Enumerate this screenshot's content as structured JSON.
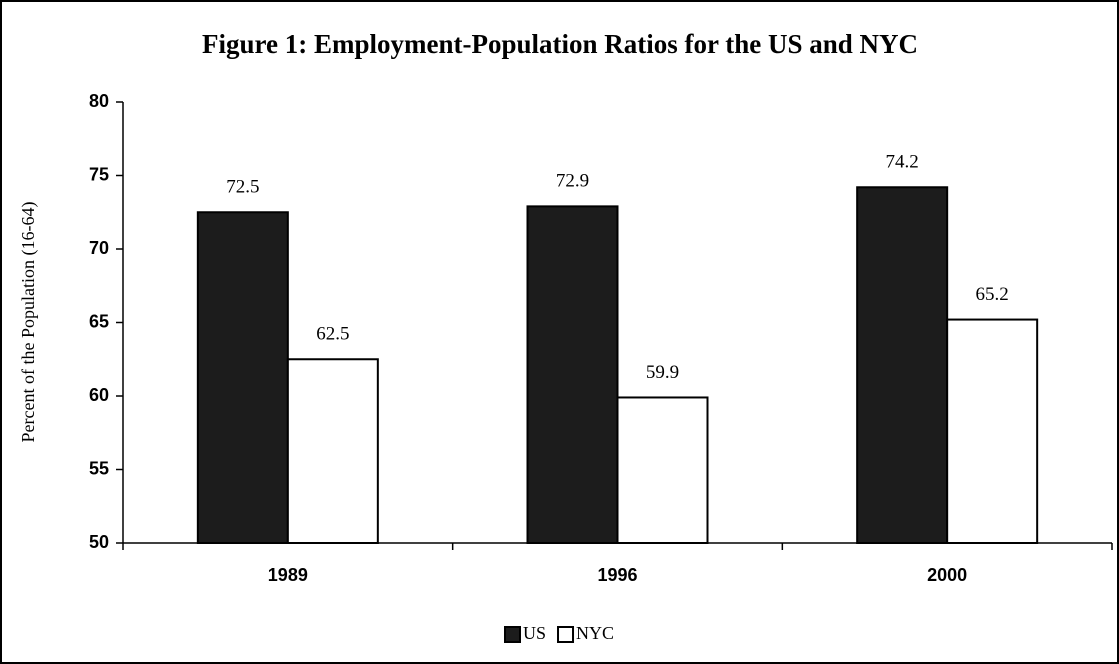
{
  "chart_data": {
    "type": "bar",
    "title": "Figure 1: Employment-Population Ratios for the US and NYC",
    "y_label": "Percent of the Population (16-64)",
    "categories": [
      "1989",
      "1996",
      "2000"
    ],
    "series": [
      {
        "name": "US",
        "color": "#1c1c1c",
        "values": [
          72.5,
          72.9,
          74.2
        ]
      },
      {
        "name": "NYC",
        "color": "#ffffff",
        "values": [
          62.5,
          59.9,
          65.2
        ]
      }
    ],
    "ylim": [
      50,
      80
    ],
    "yticks": [
      50,
      55,
      60,
      65,
      70,
      75,
      80
    ],
    "legend": "bottom"
  }
}
